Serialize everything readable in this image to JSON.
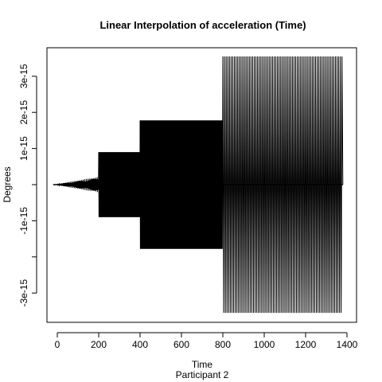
{
  "chart_data": {
    "type": "line",
    "title": "Linear Interpolation of acceleration (Time)",
    "xlabel": "Time",
    "sub_xlabel": "Participant  2",
    "ylabel": "Degrees",
    "xlim": [
      -40,
      1420
    ],
    "ylim": [
      -3.6e-15,
      3.6e-15
    ],
    "x_ticks": [
      0,
      200,
      400,
      600,
      800,
      1000,
      1200,
      1400
    ],
    "x_tick_labels": [
      "0",
      "200",
      "400",
      "600",
      "800",
      "1000",
      "1200",
      "1400"
    ],
    "y_ticks": [
      -3e-15,
      -2e-15,
      -1e-15,
      0,
      1e-15,
      2e-15,
      3e-15
    ],
    "y_tick_labels": [
      "-3e-15",
      "",
      "-1e-15",
      "",
      "1e-15",
      "2e-15",
      "3e-15"
    ],
    "grid": false,
    "legend": "none",
    "line_color": "#000000",
    "segments": [
      {
        "x_start": 0,
        "x_end": 200,
        "amplitude_max": 2.2e-16,
        "pattern": "spikes growing with time"
      },
      {
        "x_start": 200,
        "x_end": 400,
        "amplitude": 9e-16,
        "pattern": "dense square-wave oscillation"
      },
      {
        "x_start": 400,
        "x_end": 800,
        "amplitude": 1.78e-15,
        "pattern": "dense square-wave oscillation"
      },
      {
        "x_start": 800,
        "x_end": 1380,
        "amplitude": 3.55e-15,
        "pattern": "dense square-wave oscillation"
      }
    ]
  }
}
